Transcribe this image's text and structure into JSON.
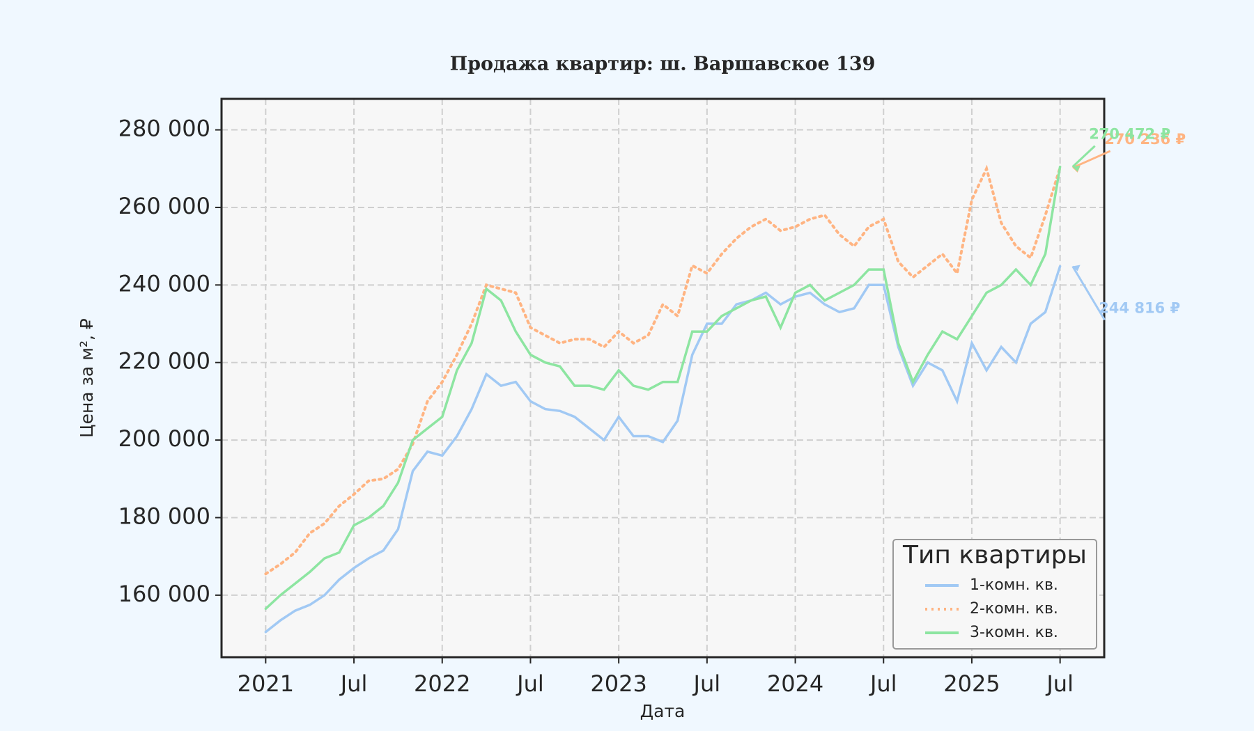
{
  "chart_data": {
    "type": "line",
    "title": "Продажа квартир: ш. Варшавское 139",
    "xlabel": "Дата",
    "ylabel": "Цена за м², ₽",
    "legend_title": "Тип квартиры",
    "legend": "lower right",
    "grid": true,
    "x": [
      "2021-01",
      "2021-02",
      "2021-03",
      "2021-04",
      "2021-05",
      "2021-06",
      "2021-07",
      "2021-08",
      "2021-09",
      "2021-10",
      "2021-11",
      "2021-12",
      "2022-01",
      "2022-02",
      "2022-03",
      "2022-04",
      "2022-05",
      "2022-06",
      "2022-07",
      "2022-08",
      "2022-09",
      "2022-10",
      "2022-11",
      "2022-12",
      "2023-01",
      "2023-02",
      "2023-03",
      "2023-04",
      "2023-05",
      "2023-06",
      "2023-07",
      "2023-08",
      "2023-09",
      "2023-10",
      "2023-11",
      "2023-12",
      "2024-01",
      "2024-02",
      "2024-03",
      "2024-04",
      "2024-05",
      "2024-06",
      "2024-07",
      "2024-08",
      "2024-09",
      "2024-10",
      "2024-11",
      "2024-12",
      "2025-01",
      "2025-02",
      "2025-03",
      "2025-04",
      "2025-05",
      "2025-06",
      "2025-07"
    ],
    "xlim": [
      "2020-10",
      "2025-10"
    ],
    "xticks": [
      {
        "value": "2021-01",
        "label": "2021"
      },
      {
        "value": "2021-07",
        "label": "Jul"
      },
      {
        "value": "2022-01",
        "label": "2022"
      },
      {
        "value": "2022-07",
        "label": "Jul"
      },
      {
        "value": "2023-01",
        "label": "2023"
      },
      {
        "value": "2023-07",
        "label": "Jul"
      },
      {
        "value": "2024-01",
        "label": "2024"
      },
      {
        "value": "2024-07",
        "label": "Jul"
      },
      {
        "value": "2025-01",
        "label": "2025"
      },
      {
        "value": "2025-07",
        "label": "Jul"
      }
    ],
    "ylim": [
      144000,
      288000
    ],
    "yticks": [
      {
        "value": 160000,
        "label": "160 000"
      },
      {
        "value": 180000,
        "label": "180 000"
      },
      {
        "value": 200000,
        "label": "200 000"
      },
      {
        "value": 220000,
        "label": "220 000"
      },
      {
        "value": 240000,
        "label": "240 000"
      },
      {
        "value": 260000,
        "label": "260 000"
      },
      {
        "value": 280000,
        "label": "280 000"
      }
    ],
    "series": [
      {
        "name": "1-комн. кв.",
        "color": "#a1c9f4",
        "style": "solid",
        "end_label": "244 816 ₽",
        "values": [
          150500,
          153500,
          156000,
          157500,
          160000,
          164000,
          167000,
          169500,
          171500,
          177000,
          192000,
          197000,
          196000,
          201000,
          208000,
          217000,
          214000,
          215000,
          210000,
          208000,
          207500,
          206000,
          203000,
          200000,
          206000,
          201000,
          201000,
          199500,
          205000,
          222000,
          230000,
          230000,
          235000,
          236000,
          238000,
          235000,
          237000,
          238000,
          235000,
          233000,
          234000,
          240000,
          240000,
          224000,
          214000,
          220000,
          218000,
          210000,
          225000,
          218000,
          224000,
          220000,
          230000,
          233000,
          244816
        ]
      },
      {
        "name": "2-комн. кв.",
        "color": "#ffb482",
        "style": "dotted",
        "end_label": "270 236 ₽",
        "values": [
          165500,
          168000,
          171000,
          176000,
          178500,
          183000,
          186000,
          189500,
          190000,
          192500,
          199000,
          210000,
          215000,
          222000,
          230000,
          240000,
          239000,
          238000,
          229000,
          227000,
          225000,
          226000,
          226000,
          224000,
          228000,
          225000,
          227000,
          235000,
          232000,
          245000,
          243000,
          248000,
          252000,
          255000,
          257000,
          254000,
          255000,
          257000,
          258000,
          253000,
          250000,
          255000,
          257000,
          246000,
          242000,
          245000,
          248000,
          243000,
          262000,
          270000,
          256000,
          250000,
          247000,
          258000,
          270236
        ]
      },
      {
        "name": "3-комн. кв.",
        "color": "#8de5a1",
        "style": "solid",
        "end_label": "270 472 ₽",
        "values": [
          156500,
          160000,
          163000,
          166000,
          169500,
          171000,
          178000,
          180000,
          183000,
          189000,
          200000,
          203000,
          206000,
          218000,
          225000,
          239000,
          236000,
          228000,
          222000,
          220000,
          219000,
          214000,
          214000,
          213000,
          218000,
          214000,
          213000,
          215000,
          215000,
          228000,
          228000,
          232000,
          234000,
          236000,
          237000,
          229000,
          238000,
          240000,
          236000,
          238000,
          240000,
          244000,
          244000,
          225000,
          215000,
          222000,
          228000,
          226000,
          232000,
          238000,
          240000,
          244000,
          240000,
          248000,
          270472
        ]
      }
    ]
  }
}
